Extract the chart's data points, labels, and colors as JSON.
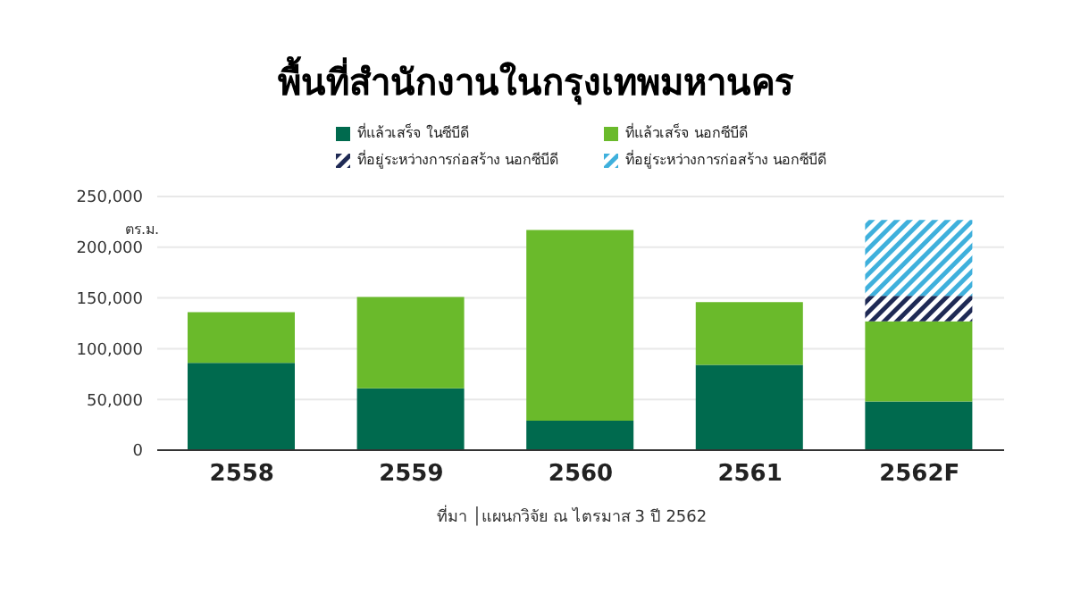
{
  "chart_data": {
    "type": "bar",
    "stacked": true,
    "title": "พื้นที่สำนักงานในกรุงเทพมหานคร",
    "ylabel": "ตร.ม.",
    "categories": [
      "2558",
      "2559",
      "2560",
      "2561",
      "2562F"
    ],
    "series": [
      {
        "name": "ที่แล้วเสร็จ ในซีบีดี",
        "color": "#006a4e",
        "values": [
          86000,
          61000,
          29000,
          84000,
          48000
        ]
      },
      {
        "name": "ที่แล้วเสร็จ นอกซีบีดี",
        "color": "#6aba2b",
        "values": [
          50000,
          90000,
          188000,
          62000,
          79000
        ]
      },
      {
        "name": "ที่อยู่ระหว่างการก่อสร้าง นอกซีบีดี",
        "color": "#1f2a55",
        "values": [
          null,
          null,
          null,
          null,
          25000
        ]
      },
      {
        "name": "ที่อยู่ระหว่างการก่อสร้าง นอกซีบีดี",
        "color": "#3fb0dc",
        "values": [
          null,
          null,
          null,
          null,
          75000
        ]
      }
    ],
    "ylim": [
      0,
      250000
    ],
    "yticks": [
      0,
      {
        "value": 50000,
        "label": "50,000"
      },
      {
        "value": 100000,
        "label": "100,000"
      },
      {
        "value": 150000,
        "label": "150,000"
      },
      {
        "value": 200000,
        "label": "200,000"
      },
      {
        "value": 250000,
        "label": "250,000"
      }
    ],
    "grid": "y",
    "legend": "top",
    "annotations": [
      "ที่มา │แผนกวิจัย ณ ไตรมาส 3 ปี 2562"
    ]
  }
}
